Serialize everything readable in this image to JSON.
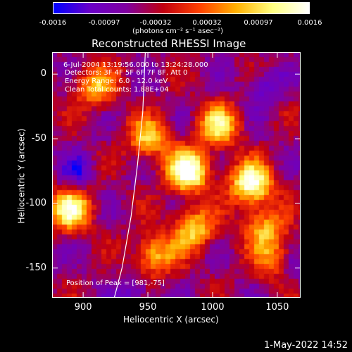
{
  "colorbar": {
    "ticks": [
      "-0.0016",
      "-0.00097",
      "-0.00032",
      "0.00032",
      "0.00097",
      "0.0016"
    ],
    "unit_label": "(photons cm⁻² s⁻¹ asec⁻²)",
    "colors": [
      "#0000ff",
      "#6a00c8",
      "#8000a0",
      "#c00010",
      "#ff4000",
      "#ffb000",
      "#ffff80",
      "#ffffff"
    ]
  },
  "chart_data": {
    "type": "heatmap",
    "title": "Reconstructed RHESSI Image",
    "xlabel": "Heliocentric X (arcsec)",
    "ylabel": "Heliocentric Y (arcsec)",
    "xlim": [
      876,
      1068
    ],
    "ylim": [
      -173,
      17
    ],
    "xticks": [
      900,
      950,
      1000,
      1050
    ],
    "yticks": [
      0,
      -50,
      -100,
      -150
    ],
    "annotations": {
      "time_range": "6-Jul-2004 13:19:56.000 to 13:24:28.000",
      "detectors": "Detectors: 3F 4F 5F 6F 7F 8F, Att 0",
      "energy": "Energy Range: 6.0 - 12.0 keV",
      "clean": "Clean     Total counts: 1.88E+04",
      "peak": "Position of Peak = [981,-75]"
    },
    "peak": [
      981,
      -75
    ],
    "limb_curve": [
      [
        924,
        -173
      ],
      [
        930,
        -150
      ],
      [
        937,
        -110
      ],
      [
        942,
        -70
      ],
      [
        946,
        -30
      ],
      [
        948,
        17
      ]
    ],
    "hotspots": [
      {
        "x": 981,
        "y": -75,
        "intensity": 1.0
      },
      {
        "x": 1030,
        "y": -85,
        "intensity": 0.95
      },
      {
        "x": 1005,
        "y": -40,
        "intensity": 0.7
      },
      {
        "x": 890,
        "y": -105,
        "intensity": 0.8
      },
      {
        "x": 955,
        "y": -140,
        "intensity": 0.6
      },
      {
        "x": 985,
        "y": -120,
        "intensity": 0.65
      },
      {
        "x": 910,
        "y": -10,
        "intensity": 0.55
      },
      {
        "x": 950,
        "y": -50,
        "intensity": 0.6
      },
      {
        "x": 1040,
        "y": -120,
        "intensity": 0.55
      },
      {
        "x": 1050,
        "y": -145,
        "intensity": 0.5
      }
    ],
    "coldspots": [
      {
        "x": 1060,
        "y": -150
      },
      {
        "x": 895,
        "y": -75
      },
      {
        "x": 1040,
        "y": -10
      },
      {
        "x": 940,
        "y": -170
      }
    ]
  },
  "footer": {
    "date": "1-May-2022 14:52"
  }
}
